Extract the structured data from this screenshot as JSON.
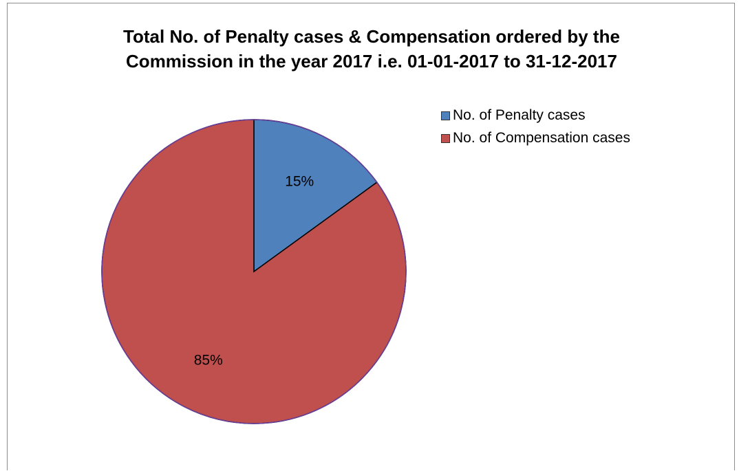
{
  "chart_data": {
    "type": "pie",
    "title": "Total No. of Penalty cases & Compensation ordered by the Commission in the year 2017 i.e. 01-01-2017 to 31-12-2017",
    "title_lines": [
      "Total No. of Penalty cases & Compensation ordered by the",
      "Commission in the year 2017 i.e. 01-01-2017 to 31-12-2017"
    ],
    "legend_position": "top-right",
    "slices": [
      {
        "label": "No. of Penalty cases",
        "value": 15,
        "data_label": "15%",
        "color": "#4f81bd"
      },
      {
        "label": "No. of Compensation cases",
        "value": 85,
        "data_label": "85%",
        "color": "#c0504d"
      }
    ],
    "start_angle_deg": 0,
    "edge_color": "#6a3fa0"
  }
}
